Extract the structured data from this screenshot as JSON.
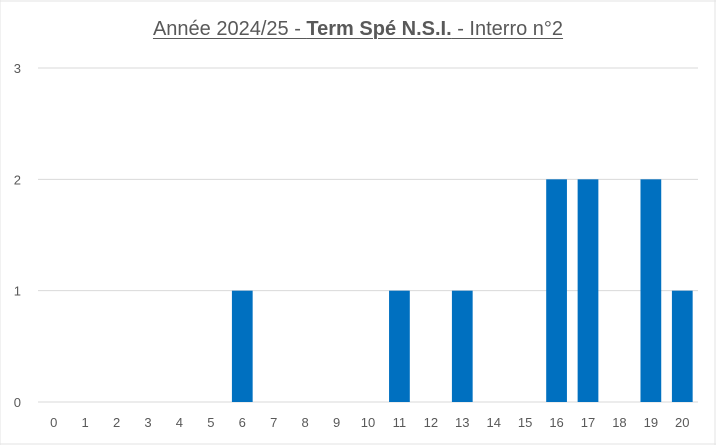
{
  "chart_data": {
    "type": "bar",
    "title": {
      "prefix": "Année 2024/25 - ",
      "bold": "Term Spé N.S.I.",
      "suffix": " - Interro n°2"
    },
    "xlabel": "",
    "ylabel": "",
    "categories": [
      "0",
      "1",
      "2",
      "3",
      "4",
      "5",
      "6",
      "7",
      "8",
      "9",
      "10",
      "11",
      "12",
      "13",
      "14",
      "15",
      "16",
      "17",
      "18",
      "19",
      "20"
    ],
    "values": [
      0,
      0,
      0,
      0,
      0,
      0,
      1,
      0,
      0,
      0,
      0,
      1,
      0,
      1,
      0,
      0,
      2,
      2,
      0,
      2,
      1
    ],
    "ylim": [
      0,
      3
    ],
    "yticks": [
      "0",
      "1",
      "2",
      "3"
    ],
    "grid": true,
    "legend": "none",
    "bar_color": "#0070C0",
    "grid_color": "#D9D9D9",
    "tick_color": "#595959"
  }
}
